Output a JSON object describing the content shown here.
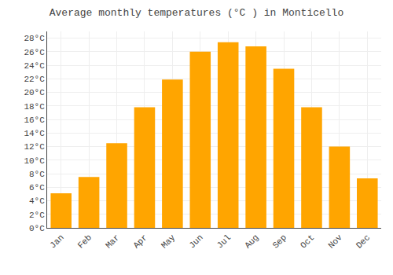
{
  "chart_data": {
    "type": "bar",
    "title": "Average monthly temperatures (°C ) in Monticello",
    "categories": [
      "Jan",
      "Feb",
      "Mar",
      "Apr",
      "May",
      "Jun",
      "Jul",
      "Aug",
      "Sep",
      "Oct",
      "Nov",
      "Dec"
    ],
    "values": [
      5.1,
      7.5,
      12.5,
      17.8,
      21.9,
      26.0,
      27.4,
      26.8,
      23.5,
      17.8,
      12.0,
      7.3
    ],
    "color": "#FFA500",
    "ylim": [
      0,
      29
    ],
    "yticks": [
      {
        "value": 0,
        "label": "0°C"
      },
      {
        "value": 2,
        "label": "2°C"
      },
      {
        "value": 4,
        "label": "4°C"
      },
      {
        "value": 6,
        "label": "6°C"
      },
      {
        "value": 8,
        "label": "8°C"
      },
      {
        "value": 10,
        "label": "10°C"
      },
      {
        "value": 12,
        "label": "12°C"
      },
      {
        "value": 14,
        "label": "14°C"
      },
      {
        "value": 16,
        "label": "16°C"
      },
      {
        "value": 18,
        "label": "18°C"
      },
      {
        "value": 20,
        "label": "20°C"
      },
      {
        "value": 22,
        "label": "22°C"
      },
      {
        "value": 24,
        "label": "24°C"
      },
      {
        "value": 26,
        "label": "26°C"
      },
      {
        "value": 28,
        "label": "28°C"
      }
    ],
    "grid": true
  }
}
